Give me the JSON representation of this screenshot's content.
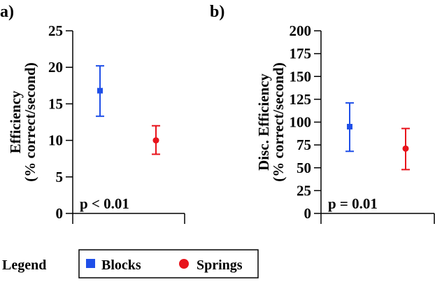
{
  "colors": {
    "blocks": "#1f4fe8",
    "springs": "#e8131b",
    "axis": "#000000"
  },
  "legend": {
    "title": "Legend",
    "items": [
      {
        "label": "Blocks",
        "marker": "square"
      },
      {
        "label": "Springs",
        "marker": "circle"
      }
    ]
  },
  "chart_data": [
    {
      "type": "scatter",
      "panel": "a)",
      "ylabel_line1": "Efficiency",
      "ylabel_line2": "(% correct/second)",
      "ylim": [
        0,
        25
      ],
      "yticks": [
        "0",
        "5",
        "10",
        "15",
        "20",
        "25"
      ],
      "annotation": "p < 0.01",
      "series": [
        {
          "name": "Blocks",
          "mean": 16.8,
          "err_low": 13.3,
          "err_high": 20.2
        },
        {
          "name": "Springs",
          "mean": 10.0,
          "err_low": 8.1,
          "err_high": 12.0
        }
      ]
    },
    {
      "type": "scatter",
      "panel": "b)",
      "ylabel_line1": "Disc. Efficiency",
      "ylabel_line2": "(% correct/second)",
      "ylim": [
        0,
        200
      ],
      "yticks": [
        "0",
        "25",
        "50",
        "75",
        "100",
        "125",
        "150",
        "175",
        "200"
      ],
      "annotation": "p = 0.01",
      "series": [
        {
          "name": "Blocks",
          "mean": 95,
          "err_low": 68,
          "err_high": 121
        },
        {
          "name": "Springs",
          "mean": 71,
          "err_low": 48,
          "err_high": 93
        }
      ]
    }
  ]
}
